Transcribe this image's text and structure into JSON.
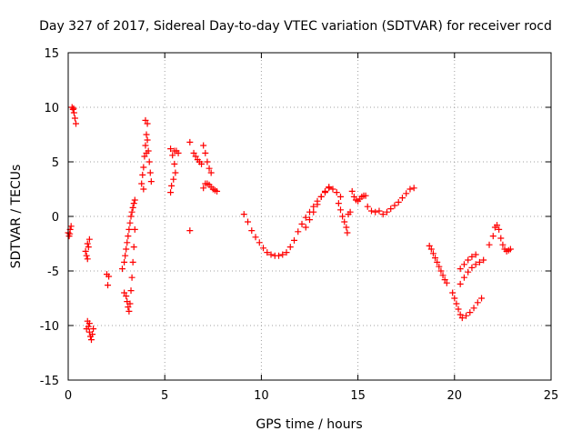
{
  "chart_data": {
    "type": "scatter",
    "title": "Day 327 of 2017, Sidereal Day-to-day VTEC variation (SDTVAR) for receiver rocd",
    "xlabel": "GPS time / hours",
    "ylabel": "SDTVAR / TECUs",
    "xlim": [
      0,
      25
    ],
    "ylim": [
      -15,
      15
    ],
    "x_ticks": [
      0,
      5,
      10,
      15,
      20,
      25
    ],
    "y_ticks": [
      -15,
      -10,
      -5,
      0,
      5,
      10,
      15
    ],
    "x_tick_labels": [
      "0",
      "5",
      "10",
      "15",
      "20",
      "25"
    ],
    "y_tick_labels": [
      "-15",
      "-10",
      "-5",
      "0",
      "5",
      "10",
      "15"
    ],
    "grid": true,
    "legend": "none",
    "marker": "plus",
    "color": "#ff0000",
    "series": [
      {
        "points": [
          [
            0.0,
            -1.5
          ],
          [
            0.05,
            -1.8
          ],
          [
            0.1,
            -1.2
          ],
          [
            0.15,
            -0.9
          ],
          [
            0.08,
            -1.6
          ],
          [
            0.2,
            10.0
          ],
          [
            0.25,
            9.8
          ],
          [
            0.3,
            9.5
          ],
          [
            0.35,
            9.0
          ],
          [
            0.4,
            8.5
          ],
          [
            0.28,
            9.9
          ],
          [
            0.9,
            -3.2
          ],
          [
            0.95,
            -3.6
          ],
          [
            1.0,
            -3.9
          ],
          [
            1.05,
            -2.8
          ],
          [
            1.1,
            -2.1
          ],
          [
            1.0,
            -2.5
          ],
          [
            1.0,
            -9.6
          ],
          [
            1.05,
            -10.1
          ],
          [
            1.1,
            -10.6
          ],
          [
            1.15,
            -11.0
          ],
          [
            1.2,
            -11.3
          ],
          [
            1.25,
            -10.8
          ],
          [
            1.3,
            -10.3
          ],
          [
            1.1,
            -9.8
          ],
          [
            0.95,
            -10.3
          ],
          [
            2.0,
            -5.3
          ],
          [
            2.1,
            -5.5
          ],
          [
            2.05,
            -6.3
          ],
          [
            2.8,
            -4.8
          ],
          [
            2.9,
            -4.2
          ],
          [
            2.95,
            -3.6
          ],
          [
            3.0,
            -3.0
          ],
          [
            3.05,
            -2.4
          ],
          [
            3.1,
            -1.8
          ],
          [
            3.15,
            -1.2
          ],
          [
            3.2,
            -0.6
          ],
          [
            3.25,
            0.0
          ],
          [
            3.3,
            0.4
          ],
          [
            3.35,
            0.8
          ],
          [
            3.4,
            1.2
          ],
          [
            3.45,
            1.5
          ],
          [
            2.9,
            -7.0
          ],
          [
            3.0,
            -7.3
          ],
          [
            3.05,
            -7.8
          ],
          [
            3.1,
            -8.3
          ],
          [
            3.15,
            -8.7
          ],
          [
            3.2,
            -8.0
          ],
          [
            3.25,
            -6.8
          ],
          [
            3.3,
            -5.6
          ],
          [
            3.35,
            -4.2
          ],
          [
            3.4,
            -2.8
          ],
          [
            3.45,
            -1.2
          ],
          [
            3.8,
            3.0
          ],
          [
            3.85,
            3.8
          ],
          [
            3.9,
            4.5
          ],
          [
            3.95,
            5.5
          ],
          [
            4.0,
            6.5
          ],
          [
            4.05,
            7.5
          ],
          [
            4.1,
            8.5
          ],
          [
            4.0,
            8.8
          ],
          [
            4.1,
            7.0
          ],
          [
            4.15,
            6.0
          ],
          [
            4.2,
            5.0
          ],
          [
            4.25,
            4.0
          ],
          [
            4.3,
            3.2
          ],
          [
            3.9,
            2.5
          ],
          [
            4.05,
            5.8
          ],
          [
            5.3,
            6.2
          ],
          [
            5.4,
            5.6
          ],
          [
            5.5,
            4.8
          ],
          [
            5.55,
            4.0
          ],
          [
            5.45,
            3.4
          ],
          [
            5.35,
            2.8
          ],
          [
            5.3,
            2.2
          ],
          [
            5.6,
            6.0
          ],
          [
            5.7,
            5.8
          ],
          [
            5.5,
            6.0
          ],
          [
            6.3,
            6.8
          ],
          [
            6.3,
            -1.3
          ],
          [
            6.5,
            5.8
          ],
          [
            6.6,
            5.5
          ],
          [
            6.7,
            5.2
          ],
          [
            6.8,
            5.0
          ],
          [
            6.9,
            4.8
          ],
          [
            7.0,
            6.5
          ],
          [
            7.1,
            5.8
          ],
          [
            7.2,
            5.0
          ],
          [
            7.3,
            4.4
          ],
          [
            7.4,
            4.0
          ],
          [
            7.0,
            2.6
          ],
          [
            7.1,
            3.0
          ],
          [
            7.2,
            3.0
          ],
          [
            7.3,
            2.9
          ],
          [
            7.4,
            2.7
          ],
          [
            7.5,
            2.5
          ],
          [
            7.6,
            2.4
          ],
          [
            7.7,
            2.3
          ],
          [
            9.1,
            0.2
          ],
          [
            9.3,
            -0.5
          ],
          [
            9.5,
            -1.3
          ],
          [
            9.7,
            -1.9
          ],
          [
            9.9,
            -2.4
          ],
          [
            10.1,
            -2.9
          ],
          [
            10.3,
            -3.3
          ],
          [
            10.5,
            -3.5
          ],
          [
            10.7,
            -3.6
          ],
          [
            10.9,
            -3.6
          ],
          [
            11.1,
            -3.5
          ],
          [
            11.3,
            -3.3
          ],
          [
            11.5,
            -2.8
          ],
          [
            11.7,
            -2.2
          ],
          [
            11.9,
            -1.4
          ],
          [
            12.1,
            -0.7
          ],
          [
            12.3,
            -0.1
          ],
          [
            12.5,
            0.4
          ],
          [
            12.7,
            0.9
          ],
          [
            12.9,
            1.4
          ],
          [
            13.1,
            1.8
          ],
          [
            13.3,
            2.2
          ],
          [
            13.5,
            2.6
          ],
          [
            13.7,
            2.5
          ],
          [
            13.9,
            2.2
          ],
          [
            14.1,
            1.8
          ],
          [
            12.3,
            -1.0
          ],
          [
            12.5,
            -0.3
          ],
          [
            12.7,
            0.4
          ],
          [
            12.9,
            1.1
          ],
          [
            13.1,
            1.8
          ],
          [
            13.3,
            2.3
          ],
          [
            13.5,
            2.7
          ],
          [
            14.0,
            1.2
          ],
          [
            14.1,
            0.6
          ],
          [
            14.2,
            0.0
          ],
          [
            14.3,
            -0.5
          ],
          [
            14.4,
            -1.0
          ],
          [
            14.45,
            -1.5
          ],
          [
            14.5,
            0.2
          ],
          [
            14.6,
            0.4
          ],
          [
            14.7,
            2.3
          ],
          [
            14.8,
            1.8
          ],
          [
            14.9,
            1.5
          ],
          [
            15.0,
            1.4
          ],
          [
            15.1,
            1.6
          ],
          [
            15.2,
            1.8
          ],
          [
            15.3,
            1.9
          ],
          [
            15.4,
            1.9
          ],
          [
            15.5,
            0.9
          ],
          [
            15.7,
            0.5
          ],
          [
            15.9,
            0.4
          ],
          [
            16.1,
            0.5
          ],
          [
            16.3,
            0.2
          ],
          [
            16.5,
            0.4
          ],
          [
            16.7,
            0.7
          ],
          [
            16.9,
            1.0
          ],
          [
            17.1,
            1.3
          ],
          [
            17.3,
            1.7
          ],
          [
            17.5,
            2.1
          ],
          [
            17.7,
            2.5
          ],
          [
            17.9,
            2.6
          ],
          [
            18.7,
            -2.7
          ],
          [
            18.8,
            -3.0
          ],
          [
            18.9,
            -3.4
          ],
          [
            19.0,
            -3.8
          ],
          [
            19.1,
            -4.2
          ],
          [
            19.2,
            -4.6
          ],
          [
            19.3,
            -5.0
          ],
          [
            19.4,
            -5.4
          ],
          [
            19.5,
            -5.8
          ],
          [
            19.6,
            -6.1
          ],
          [
            19.9,
            -7.0
          ],
          [
            20.0,
            -7.5
          ],
          [
            20.1,
            -8.0
          ],
          [
            20.2,
            -8.5
          ],
          [
            20.3,
            -9.0
          ],
          [
            20.4,
            -9.3
          ],
          [
            20.6,
            -9.1
          ],
          [
            20.8,
            -8.8
          ],
          [
            21.0,
            -8.4
          ],
          [
            21.2,
            -7.9
          ],
          [
            21.4,
            -7.5
          ],
          [
            20.3,
            -6.2
          ],
          [
            20.5,
            -5.6
          ],
          [
            20.7,
            -5.1
          ],
          [
            20.9,
            -4.7
          ],
          [
            21.1,
            -4.4
          ],
          [
            21.3,
            -4.2
          ],
          [
            21.5,
            -4.0
          ],
          [
            20.3,
            -4.8
          ],
          [
            20.5,
            -4.4
          ],
          [
            20.7,
            -4.0
          ],
          [
            20.9,
            -3.7
          ],
          [
            21.1,
            -3.5
          ],
          [
            21.8,
            -2.6
          ],
          [
            22.0,
            -1.8
          ],
          [
            22.1,
            -1.0
          ],
          [
            22.2,
            -0.8
          ],
          [
            22.3,
            -1.2
          ],
          [
            22.4,
            -2.0
          ],
          [
            22.5,
            -2.6
          ],
          [
            22.6,
            -3.0
          ],
          [
            22.7,
            -3.2
          ],
          [
            22.8,
            -3.1
          ],
          [
            22.9,
            -3.0
          ]
        ]
      }
    ]
  }
}
